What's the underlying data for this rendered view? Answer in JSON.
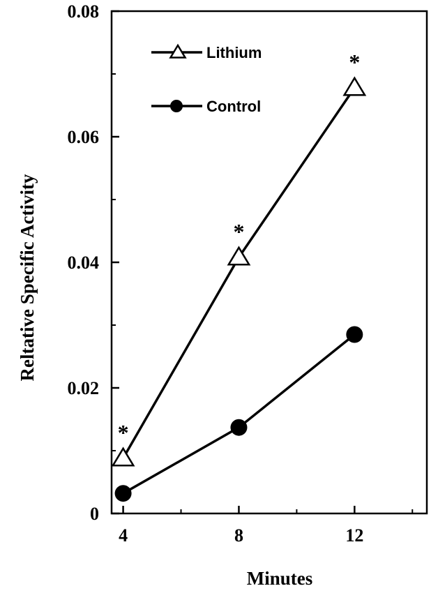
{
  "chart_data": {
    "type": "line",
    "xlabel": "Minutes",
    "ylabel": "Reltative Specific Activity",
    "xlim": [
      3.6,
      14.5
    ],
    "ylim": [
      0,
      0.08
    ],
    "xticks": [
      4,
      8,
      12
    ],
    "xtick_labels": [
      "4",
      "8",
      "12"
    ],
    "xticks_minor": [
      6,
      10,
      14
    ],
    "yticks": [
      0,
      0.02,
      0.04,
      0.06,
      0.08
    ],
    "ytick_labels": [
      "0",
      "0.02",
      "0.04",
      "0.06",
      "0.08"
    ],
    "yticks_minor": [
      0.01,
      0.03,
      0.05,
      0.07
    ],
    "grid": false,
    "legend_position": "top-left",
    "series": [
      {
        "name": "Lithium",
        "marker": "open-triangle",
        "x": [
          4,
          8,
          12
        ],
        "y": [
          0.0088,
          0.0408,
          0.0678
        ],
        "annotations": [
          "*",
          "*",
          "*"
        ]
      },
      {
        "name": "Control",
        "marker": "filled-circle",
        "x": [
          4,
          8,
          12
        ],
        "y": [
          0.0032,
          0.0137,
          0.0285
        ]
      }
    ]
  }
}
